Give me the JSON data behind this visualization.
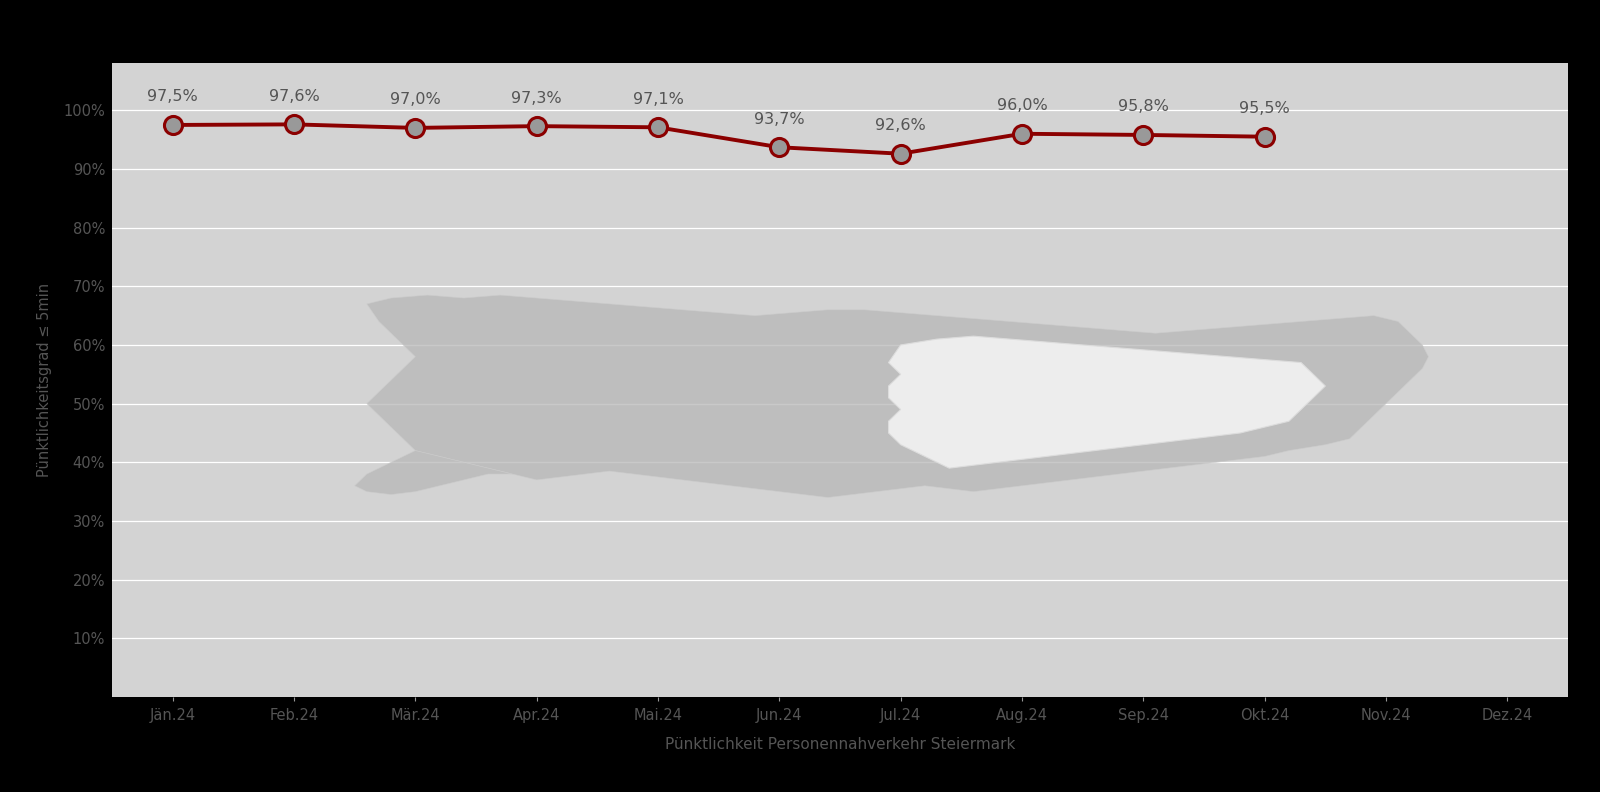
{
  "months": [
    "Jän.24",
    "Feb.24",
    "Mär.24",
    "Apr.24",
    "Mai.24",
    "Jun.24",
    "Jul.24",
    "Aug.24",
    "Sep.24",
    "Okt.24",
    "Nov.24",
    "Dez.24"
  ],
  "values": [
    97.5,
    97.6,
    97.0,
    97.3,
    97.1,
    93.7,
    92.6,
    96.0,
    95.8,
    95.5,
    null,
    null
  ],
  "labels": [
    "97,5%",
    "97,6%",
    "97,0%",
    "97,3%",
    "97,1%",
    "93,7%",
    "92,6%",
    "96,0%",
    "95,8%",
    "95,5%"
  ],
  "xlabel": "Pünktlichkeit Personennahverkehr Steiermark",
  "ylabel": "Pünktlichkeitsgrad ≤ 5min",
  "ylim_min": 0,
  "ylim_max": 108,
  "yticks": [
    10,
    20,
    30,
    40,
    50,
    60,
    70,
    80,
    90,
    100
  ],
  "ytick_labels": [
    "10%",
    "20%",
    "30%",
    "40%",
    "50%",
    "60%",
    "70%",
    "80%",
    "90%",
    "100%"
  ],
  "line_color": "#8B0000",
  "marker_face_color": "#999999",
  "marker_edge_color": "#8B0000",
  "plot_bg_color": "#D3D3D3",
  "figure_bg_color": "#000000",
  "label_color": "#555555",
  "xlabel_color": "#555555",
  "ylabel_color": "#555555",
  "tick_color": "#555555",
  "grid_color": "#BBBBBB",
  "marker_size": 13,
  "line_width": 2.8,
  "austria_color": "#B8B8B8",
  "steiermark_color": "#F0F0F0",
  "austria_edge_color": "#CCCCCC",
  "steiermark_edge_color": "#DDDDDD"
}
